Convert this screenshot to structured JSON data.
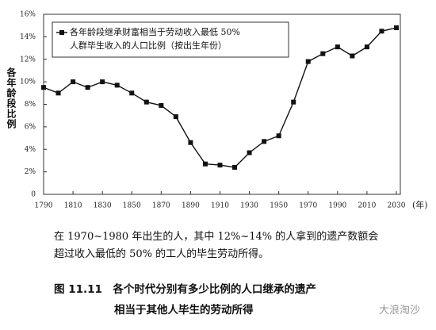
{
  "chart_data": {
    "type": "line",
    "ylabel": "各年龄段比例",
    "xlabel": "(年)",
    "x": [
      1790,
      1800,
      1810,
      1820,
      1830,
      1840,
      1850,
      1860,
      1870,
      1880,
      1890,
      1900,
      1910,
      1920,
      1930,
      1940,
      1950,
      1960,
      1970,
      1980,
      1990,
      2000,
      2010,
      2020,
      2030
    ],
    "series": [
      {
        "name": "各年龄段继承财富相当于劳动收入最低 50%\n人群毕生收入的人口比例（按出生年份）",
        "color": "#111111",
        "values": [
          9.5,
          9.0,
          10.0,
          9.5,
          10.0,
          9.7,
          9.0,
          8.2,
          7.9,
          6.9,
          4.6,
          2.7,
          2.6,
          2.4,
          3.7,
          4.7,
          5.2,
          8.2,
          11.8,
          12.5,
          13.1,
          12.3,
          13.1,
          14.5,
          14.8
        ]
      }
    ],
    "xlim": [
      1790,
      2030
    ],
    "xticks": [
      1790,
      1810,
      1830,
      1850,
      1870,
      1890,
      1910,
      1930,
      1950,
      1970,
      1990,
      2010,
      2030
    ],
    "ylim": [
      0,
      16
    ],
    "yticks": [
      0,
      {
        "value": 2,
        "label": "2%"
      },
      {
        "value": 4,
        "label": "4%"
      },
      {
        "value": 6,
        "label": "6%"
      },
      {
        "value": 8,
        "label": "8%"
      },
      {
        "value": 10,
        "label": "10%"
      },
      {
        "value": 12,
        "label": "12%"
      },
      {
        "value": 14,
        "label": "14%"
      },
      {
        "value": 16,
        "label": "16%"
      }
    ],
    "grid": false,
    "legend": "upper left"
  },
  "caption": [
    "在 1970~1980 年出生的人，其中 12%~14% 的人拿到的遗产数额会",
    "超过收入最低的 50% 的工人的毕生劳动所得。"
  ],
  "figure_title": [
    "图 11.11　各个时代分别有多少比例的人口继承的遗产",
    "相当于其他人毕生的劳动所得"
  ],
  "watermark": "大浪淘沙"
}
